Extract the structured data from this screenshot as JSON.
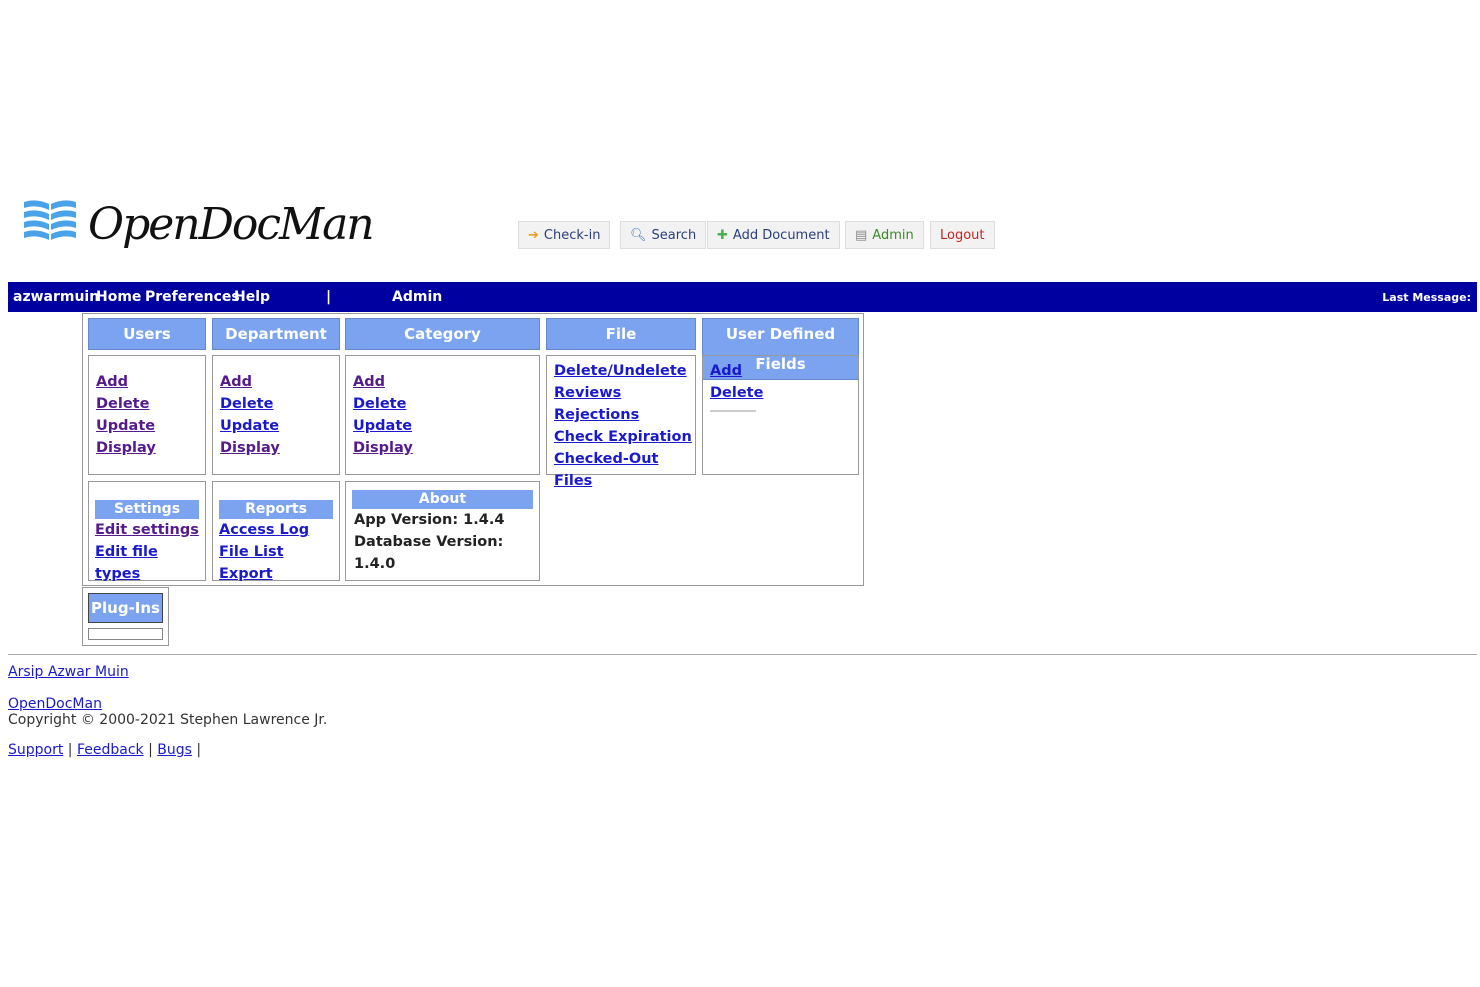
{
  "logo": {
    "text": "OpenDocMan"
  },
  "toolbar": [
    {
      "label": "Check-in",
      "icon": "arrow-in-icon",
      "color": "#2a3f7a"
    },
    {
      "label": "Search",
      "icon": "magnifier-icon",
      "color": "#2a3f7a"
    },
    {
      "label": "Add Document",
      "icon": "plus-icon",
      "color": "#2a3f7a"
    },
    {
      "label": "Admin",
      "icon": "admin-icon",
      "color": "#3a8a2a"
    },
    {
      "label": "Logout",
      "icon": "",
      "color": "#cc2222"
    }
  ],
  "nav": {
    "user": "azwarmuin",
    "home": "Home",
    "preferences": "Preferences",
    "help": "Help",
    "separator": "|",
    "admin": "Admin",
    "last_message": "Last Message:"
  },
  "sections": {
    "users": {
      "title": "Users",
      "links": [
        "Add",
        "Delete",
        "Update",
        "Display"
      ]
    },
    "department": {
      "title": "Department",
      "links": [
        "Add",
        "Delete",
        "Update",
        "Display"
      ]
    },
    "category": {
      "title": "Category",
      "links": [
        "Add",
        "Delete",
        "Update",
        "Display"
      ]
    },
    "file": {
      "title": "File",
      "links": [
        "Delete/Undelete",
        "Reviews",
        "Rejections",
        "Check Expiration",
        "Checked-Out Files"
      ]
    },
    "udf": {
      "title": "User Defined Fields",
      "links": [
        "Add",
        "Delete"
      ]
    },
    "settings": {
      "title": "Settings",
      "links": [
        "Edit settings",
        "Edit file types"
      ]
    },
    "reports": {
      "title": "Reports",
      "links": [
        "Access Log",
        "File List Export"
      ]
    },
    "about": {
      "title": "About",
      "app_version": "App Version: 1.4.4",
      "db_version": "Database Version: 1.4.0"
    },
    "plugins": {
      "title": "Plug-Ins"
    }
  },
  "footer": {
    "site": "Arsip Azwar Muin",
    "product": "OpenDocMan",
    "copyright": "Copyright © 2000-2021 Stephen Lawrence Jr.",
    "links": [
      "Support",
      "Feedback",
      "Bugs"
    ],
    "sep": "|"
  },
  "colors": {
    "nav_bg": "#0000a0",
    "header_bg": "#7ba3ef",
    "visited": "#551a8b",
    "link": "#1a1acc"
  }
}
